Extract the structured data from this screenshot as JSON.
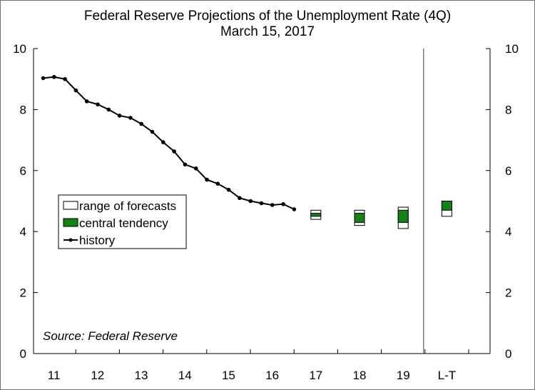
{
  "chart_data": {
    "type": "line",
    "title": "Federal Reserve Projections of the Unemployment Rate (4Q)",
    "subtitle": "March 15, 2017",
    "source": "Source: Federal Reserve",
    "ylim": [
      0,
      10
    ],
    "yticks": [
      "0",
      "2",
      "4",
      "6",
      "8",
      "10"
    ],
    "x_categories": [
      "11",
      "12",
      "13",
      "14",
      "15",
      "16",
      "17",
      "18",
      "19",
      "L-T"
    ],
    "legend": {
      "range": "range of forecasts",
      "central": "central tendency",
      "history": "history"
    },
    "colors": {
      "history": "#000000",
      "central": "#148214",
      "range_fill": "#ffffff",
      "axis": "#000000",
      "divider": "#5a5a5a"
    },
    "history": [
      {
        "q": "2010Q4",
        "value": 9.03
      },
      {
        "q": "2011Q1",
        "value": 9.07
      },
      {
        "q": "2011Q2",
        "value": 9.0
      },
      {
        "q": "2011Q3",
        "value": 8.63
      },
      {
        "q": "2011Q4",
        "value": 8.27
      },
      {
        "q": "2012Q1",
        "value": 8.17
      },
      {
        "q": "2012Q2",
        "value": 8.0
      },
      {
        "q": "2012Q3",
        "value": 7.8
      },
      {
        "q": "2012Q4",
        "value": 7.73
      },
      {
        "q": "2013Q1",
        "value": 7.53
      },
      {
        "q": "2013Q2",
        "value": 7.27
      },
      {
        "q": "2013Q3",
        "value": 6.93
      },
      {
        "q": "2013Q4",
        "value": 6.63
      },
      {
        "q": "2014Q1",
        "value": 6.2
      },
      {
        "q": "2014Q2",
        "value": 6.07
      },
      {
        "q": "2014Q3",
        "value": 5.7
      },
      {
        "q": "2014Q4",
        "value": 5.57
      },
      {
        "q": "2015Q1",
        "value": 5.37
      },
      {
        "q": "2015Q2",
        "value": 5.1
      },
      {
        "q": "2015Q3",
        "value": 5.0
      },
      {
        "q": "2015Q4",
        "value": 4.93
      },
      {
        "q": "2016Q1",
        "value": 4.87
      },
      {
        "q": "2016Q2",
        "value": 4.9
      },
      {
        "q": "2016Q3",
        "value": 4.73
      }
    ],
    "projections": [
      {
        "year": "17",
        "range": [
          4.4,
          4.7
        ],
        "central": [
          4.5,
          4.6
        ]
      },
      {
        "year": "18",
        "range": [
          4.2,
          4.7
        ],
        "central": [
          4.3,
          4.6
        ]
      },
      {
        "year": "19",
        "range": [
          4.1,
          4.8
        ],
        "central": [
          4.3,
          4.7
        ]
      },
      {
        "year": "L-T",
        "range": [
          4.5,
          5.0
        ],
        "central": [
          4.7,
          5.0
        ]
      }
    ]
  }
}
